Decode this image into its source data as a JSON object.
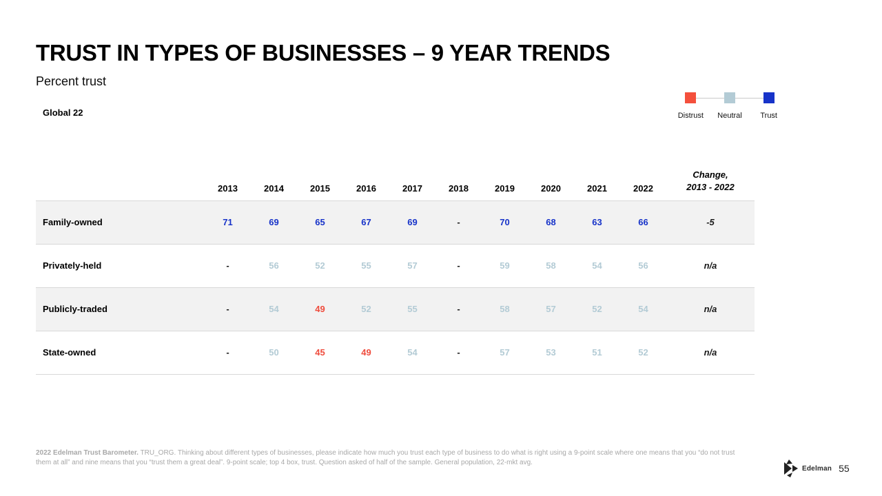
{
  "slide": {
    "title": "TRUST IN TYPES OF BUSINESSES – 9 YEAR TRENDS",
    "subtitle": "Percent trust",
    "scope_label": "Global 22",
    "brand": "Edelman",
    "page_number": "55"
  },
  "legend": {
    "items": [
      {
        "label": "Distrust",
        "color": "#f4503c"
      },
      {
        "label": "Neutral",
        "color": "#b3cbd5"
      },
      {
        "label": "Trust",
        "color": "#1733c9"
      }
    ]
  },
  "table": {
    "year_columns": [
      "2013",
      "2014",
      "2015",
      "2016",
      "2017",
      "2018",
      "2019",
      "2020",
      "2021",
      "2022"
    ],
    "change_header": {
      "line1": "Change,",
      "line2": "2013 - 2022"
    },
    "value_colors": {
      "trust": "#1733c9",
      "neutral": "#b3cbd5",
      "distrust": "#ef4c3d",
      "plain": "#1a1a1a"
    },
    "rows": [
      {
        "label": "Family-owned",
        "cells": [
          {
            "v": "71",
            "c": "trust"
          },
          {
            "v": "69",
            "c": "trust"
          },
          {
            "v": "65",
            "c": "trust"
          },
          {
            "v": "67",
            "c": "trust"
          },
          {
            "v": "69",
            "c": "trust"
          },
          {
            "v": "-",
            "c": "plain"
          },
          {
            "v": "70",
            "c": "trust"
          },
          {
            "v": "68",
            "c": "trust"
          },
          {
            "v": "63",
            "c": "trust"
          },
          {
            "v": "66",
            "c": "trust"
          }
        ],
        "change": "-5"
      },
      {
        "label": "Privately-held",
        "cells": [
          {
            "v": "-",
            "c": "plain"
          },
          {
            "v": "56",
            "c": "neutral"
          },
          {
            "v": "52",
            "c": "neutral"
          },
          {
            "v": "55",
            "c": "neutral"
          },
          {
            "v": "57",
            "c": "neutral"
          },
          {
            "v": "-",
            "c": "plain"
          },
          {
            "v": "59",
            "c": "neutral"
          },
          {
            "v": "58",
            "c": "neutral"
          },
          {
            "v": "54",
            "c": "neutral"
          },
          {
            "v": "56",
            "c": "neutral"
          }
        ],
        "change": "n/a"
      },
      {
        "label": "Publicly-traded",
        "cells": [
          {
            "v": "-",
            "c": "plain"
          },
          {
            "v": "54",
            "c": "neutral"
          },
          {
            "v": "49",
            "c": "distrust"
          },
          {
            "v": "52",
            "c": "neutral"
          },
          {
            "v": "55",
            "c": "neutral"
          },
          {
            "v": "-",
            "c": "plain"
          },
          {
            "v": "58",
            "c": "neutral"
          },
          {
            "v": "57",
            "c": "neutral"
          },
          {
            "v": "52",
            "c": "neutral"
          },
          {
            "v": "54",
            "c": "neutral"
          }
        ],
        "change": "n/a"
      },
      {
        "label": "State-owned",
        "cells": [
          {
            "v": "-",
            "c": "plain"
          },
          {
            "v": "50",
            "c": "neutral"
          },
          {
            "v": "45",
            "c": "distrust"
          },
          {
            "v": "49",
            "c": "distrust"
          },
          {
            "v": "54",
            "c": "neutral"
          },
          {
            "v": "-",
            "c": "plain"
          },
          {
            "v": "57",
            "c": "neutral"
          },
          {
            "v": "53",
            "c": "neutral"
          },
          {
            "v": "51",
            "c": "neutral"
          },
          {
            "v": "52",
            "c": "neutral"
          }
        ],
        "change": "n/a"
      }
    ]
  },
  "footnote": {
    "lead": "2022 Edelman Trust Barometer.",
    "body": " TRU_ORG. Thinking about different types of businesses, please indicate how much you trust each type of business to do what is right using a 9-point scale where one means that you “do not trust them at all” and nine means that you “trust them a great deal”. 9-point scale; top 4 box, trust. Question asked of half of the sample. General population, 22-mkt avg."
  },
  "chart_data": {
    "type": "table",
    "title": "TRUST IN TYPES OF BUSINESSES – 9 YEAR TRENDS",
    "subtitle": "Percent trust",
    "population": "Global 22",
    "categories": [
      "2013",
      "2014",
      "2015",
      "2016",
      "2017",
      "2018",
      "2019",
      "2020",
      "2021",
      "2022"
    ],
    "change_column_label": "Change, 2013 - 2022",
    "series": [
      {
        "name": "Family-owned",
        "values": [
          71,
          69,
          65,
          67,
          69,
          null,
          70,
          68,
          63,
          66
        ],
        "change": "-5"
      },
      {
        "name": "Privately-held",
        "values": [
          null,
          56,
          52,
          55,
          57,
          null,
          59,
          58,
          54,
          56
        ],
        "change": "n/a"
      },
      {
        "name": "Publicly-traded",
        "values": [
          null,
          54,
          49,
          52,
          55,
          null,
          58,
          57,
          52,
          54
        ],
        "change": "n/a"
      },
      {
        "name": "State-owned",
        "values": [
          null,
          50,
          45,
          49,
          54,
          null,
          57,
          53,
          51,
          52
        ],
        "change": "n/a"
      }
    ],
    "legend": [
      "Distrust",
      "Neutral",
      "Trust"
    ],
    "color_coding": {
      "trust_blue": "#1733c9",
      "neutral_lightblue": "#b3cbd5",
      "distrust_red": "#ef4c3d"
    }
  }
}
